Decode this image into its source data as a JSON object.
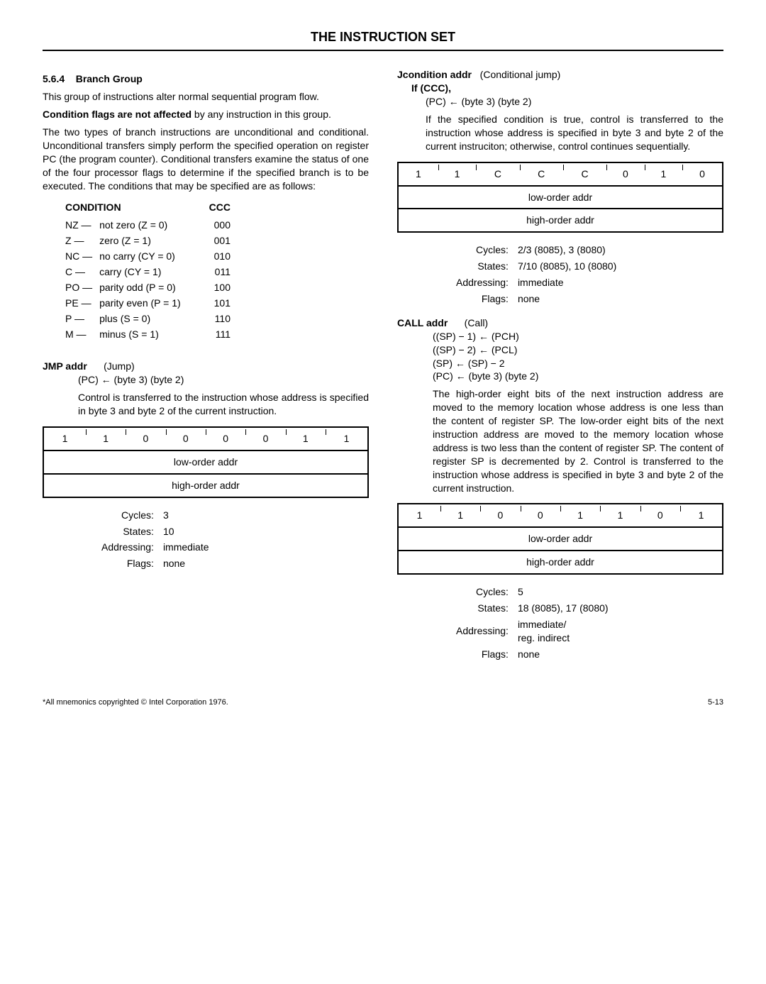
{
  "header": {
    "title": "THE INSTRUCTION SET"
  },
  "left": {
    "section_num": "5.6.4",
    "section_title": "Branch Group",
    "para1": "This group of instructions alter normal sequential program flow.",
    "para2_lead": "Condition flags are not affected",
    "para2_rest": " by any instruction in this group.",
    "para3": "The two types of branch instructions are unconditional and conditional. Unconditional transfers simply perform the specified operation on register PC (the program counter). Conditional transfers examine the status of one of the four processor flags to determine if the specified branch is to be executed. The conditions that may be specified are as follows:",
    "cond_head_left": "CONDITION",
    "cond_head_right": "CCC",
    "conditions": [
      {
        "sym": "NZ —",
        "desc": "not zero (Z = 0)",
        "ccc": "000"
      },
      {
        "sym": "Z —",
        "desc": "zero (Z = 1)",
        "ccc": "001"
      },
      {
        "sym": "NC —",
        "desc": "no carry (CY = 0)",
        "ccc": "010"
      },
      {
        "sym": "C —",
        "desc": "carry (CY = 1)",
        "ccc": "011"
      },
      {
        "sym": "PO —",
        "desc": "parity odd (P = 0)",
        "ccc": "100"
      },
      {
        "sym": "PE —",
        "desc": "parity even (P = 1)",
        "ccc": "101"
      },
      {
        "sym": "P —",
        "desc": "plus (S = 0)",
        "ccc": "110"
      },
      {
        "sym": "M —",
        "desc": "minus (S = 1)",
        "ccc": "111"
      }
    ],
    "jmp": {
      "name": "JMP addr",
      "subtitle": "(Jump)",
      "op1": "(PC) ← (byte 3) (byte 2)",
      "desc": "Control is transferred to the instruction whose address is specified in byte 3 and byte 2 of the current instruction.",
      "bits": [
        "1",
        "1",
        "0",
        "0",
        "0",
        "0",
        "1",
        "1"
      ],
      "row2": "low-order addr",
      "row3": "high-order addr",
      "meta": {
        "cycles": "3",
        "states": "10",
        "addressing": "immediate",
        "flags": "none"
      }
    }
  },
  "right": {
    "jcond": {
      "name": "Jcondition addr",
      "subtitle": "(Conditional jump)",
      "if_line": "If (CCC),",
      "op1": "(PC) ← (byte 3) (byte 2)",
      "desc": "If the specified condition is true, control is transferred to the instruction whose address is specified in byte 3 and byte 2 of the current instruciton; otherwise, control continues sequentially.",
      "bits": [
        "1",
        "1",
        "C",
        "C",
        "C",
        "0",
        "1",
        "0"
      ],
      "row2": "low-order addr",
      "row3": "high-order addr",
      "meta": {
        "cycles": "2/3 (8085), 3 (8080)",
        "states": "7/10 (8085), 10 (8080)",
        "addressing": "immediate",
        "flags": "none"
      }
    },
    "call": {
      "name": "CALL addr",
      "subtitle": "(Call)",
      "op1": "((SP) − 1) ← (PCH)",
      "op2": "((SP) − 2) ← (PCL)",
      "op3": "(SP) ← (SP) − 2",
      "op4": "(PC) ← (byte 3) (byte 2)",
      "desc": "The high-order eight bits of the next instruction address are moved to the memory location whose address is one less than the content of register SP. The low-order eight bits of the next instruction address are moved to the memory location whose address is two less than the content of register SP. The content of register SP is decremented by 2. Control is transferred to the instruction whose address is specified in byte 3 and byte 2 of the current instruction.",
      "bits": [
        "1",
        "1",
        "0",
        "0",
        "1",
        "1",
        "0",
        "1"
      ],
      "row2": "low-order addr",
      "row3": "high-order addr",
      "meta": {
        "cycles": "5",
        "states": "18 (8085), 17 (8080)",
        "addressing": "immediate/\nreg. indirect",
        "flags": "none"
      }
    }
  },
  "meta_labels": {
    "cycles": "Cycles:",
    "states": "States:",
    "addressing": "Addressing:",
    "flags": "Flags:"
  },
  "footer": {
    "left": "*All mnemonics copyrighted © Intel Corporation 1976.",
    "right": "5-13"
  }
}
